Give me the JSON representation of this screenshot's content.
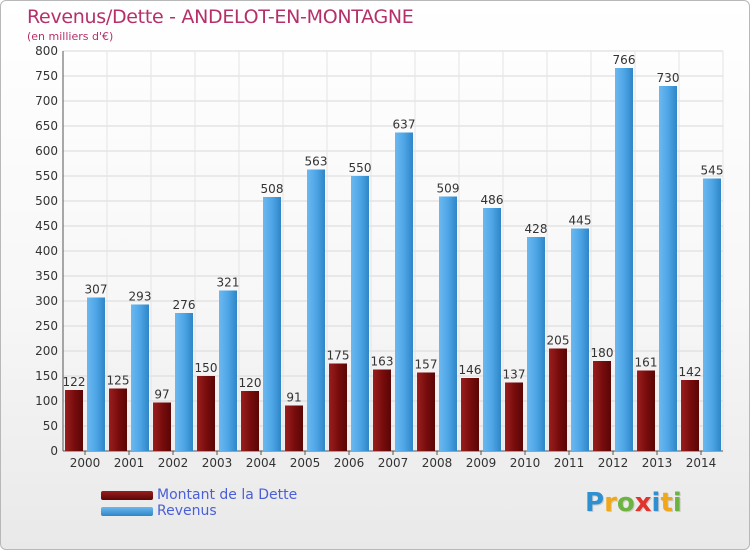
{
  "title": "Revenus/Dette - ANDELOT-EN-MONTAGNE",
  "subtitle": "(en milliers d'€)",
  "logo": {
    "letters": [
      "P",
      "r",
      "o",
      "x",
      "i",
      "t",
      "i"
    ],
    "colors": [
      "#2e8fd1",
      "#f0a81a",
      "#6db33f",
      "#e0342d",
      "#2e8fd1",
      "#f0a81a",
      "#6db33f"
    ]
  },
  "colors": {
    "dette": "#7a0d0d",
    "revenus": "#4ea6e6",
    "title": "#b5306a",
    "legend_text": "#4a5fd6"
  },
  "chart_data": {
    "type": "bar",
    "title": "Revenus/Dette - ANDELOT-EN-MONTAGNE",
    "ylabel": "(en milliers d'€)",
    "xlabel": "",
    "ylim": [
      0,
      800
    ],
    "yticks": [
      0,
      50,
      100,
      150,
      200,
      250,
      300,
      350,
      400,
      450,
      500,
      550,
      600,
      650,
      700,
      750,
      800
    ],
    "grid": true,
    "legend_position": "bottom-left",
    "categories": [
      "2000",
      "2001",
      "2002",
      "2003",
      "2004",
      "2005",
      "2006",
      "2007",
      "2008",
      "2009",
      "2010",
      "2011",
      "2012",
      "2013",
      "2014"
    ],
    "series": [
      {
        "name": "Montant de la Dette",
        "color": "#7a0d0d",
        "values": [
          122,
          125,
          97,
          150,
          120,
          91,
          175,
          163,
          157,
          146,
          137,
          205,
          180,
          161,
          142
        ]
      },
      {
        "name": "Revenus",
        "color": "#4ea6e6",
        "values": [
          307,
          293,
          276,
          321,
          508,
          563,
          550,
          637,
          509,
          486,
          428,
          445,
          766,
          730,
          545
        ]
      }
    ]
  }
}
